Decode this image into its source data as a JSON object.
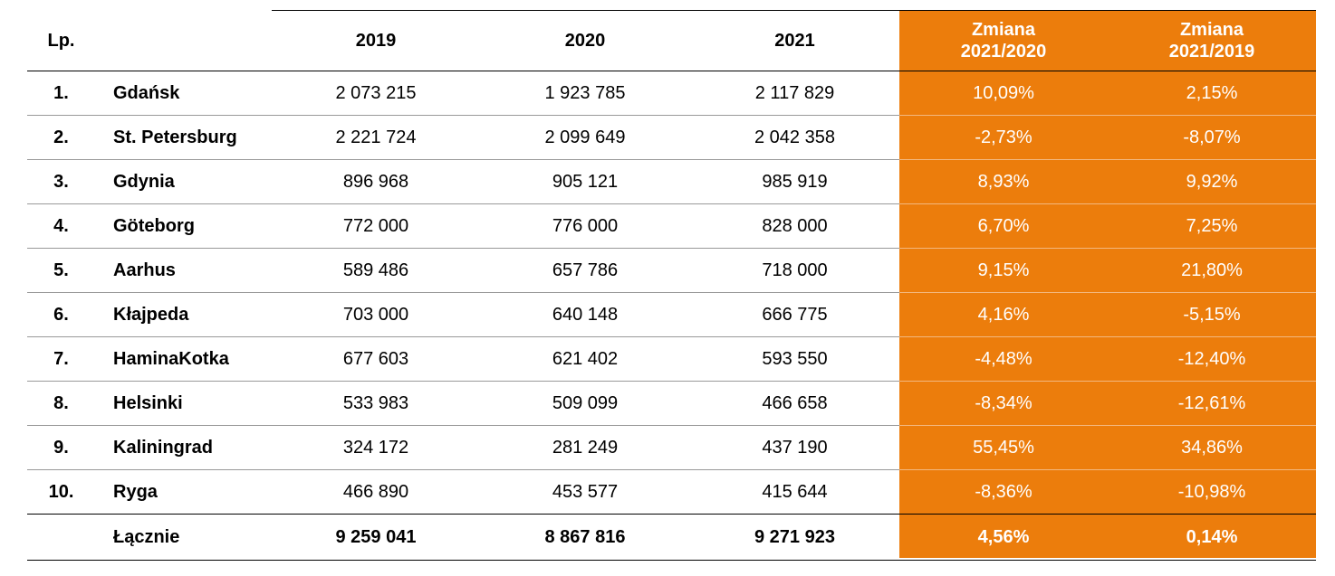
{
  "table": {
    "header": {
      "lp": "Lp.",
      "columns": [
        "2019",
        "2020",
        "2021",
        "Zmiana\n2021/2020",
        "Zmiana\n2021/2019"
      ]
    },
    "rows": [
      [
        "1.",
        "Gdańsk",
        "2 073 215",
        "1 923 785",
        "2 117 829",
        "10,09%",
        "2,15%"
      ],
      [
        "2.",
        "St. Petersburg",
        "2 221 724",
        "2 099 649",
        "2 042 358",
        "-2,73%",
        "-8,07%"
      ],
      [
        "3.",
        "Gdynia",
        "896 968",
        "905 121",
        "985 919",
        "8,93%",
        "9,92%"
      ],
      [
        "4.",
        "Göteborg",
        "772 000",
        "776 000",
        "828 000",
        "6,70%",
        "7,25%"
      ],
      [
        "5.",
        "Aarhus",
        "589 486",
        "657 786",
        "718 000",
        "9,15%",
        "21,80%"
      ],
      [
        "6.",
        "Kłajpeda",
        "703 000",
        "640 148",
        "666 775",
        "4,16%",
        "-5,15%"
      ],
      [
        "7.",
        "HaminaKotka",
        "677 603",
        "621 402",
        "593 550",
        "-4,48%",
        "-12,40%"
      ],
      [
        "8.",
        "Helsinki",
        "533 983",
        "509 099",
        "466 658",
        "-8,34%",
        "-12,61%"
      ],
      [
        "9.",
        "Kaliningrad",
        "324 172",
        "281 249",
        "437 190",
        "55,45%",
        "34,86%"
      ],
      [
        "10.",
        "Ryga",
        "466 890",
        "453 577",
        "415 644",
        "-8,36%",
        "-10,98%"
      ]
    ],
    "total": {
      "label": "Łącznie",
      "values": [
        "9 259 041",
        "8 867 816",
        "9 271 923",
        "4,56%",
        "0,14%"
      ]
    }
  }
}
